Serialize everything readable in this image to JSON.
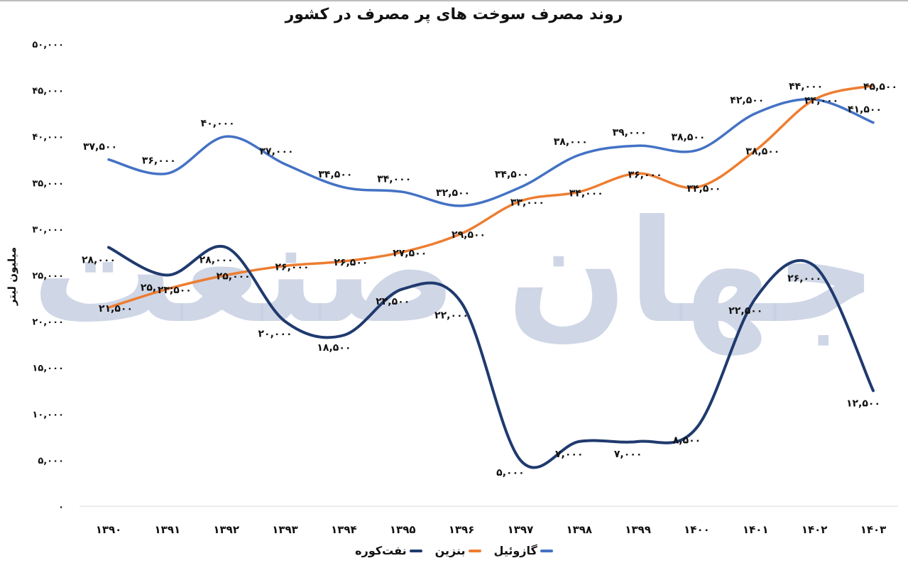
{
  "header": {
    "title": "روند مصرف سوخت های پر مصرف در کشور"
  },
  "watermark": {
    "text": "جهان صنعت",
    "color": "#c7cfe2"
  },
  "chart_data": {
    "type": "line",
    "title": "روند مصرف سوخت های پر مصرف در کشور",
    "xlabel": "",
    "ylabel": "میلیون لیتر",
    "ylim": [
      0,
      50000
    ],
    "y_ticks": [
      0,
      5000,
      10000,
      15000,
      20000,
      25000,
      30000,
      35000,
      40000,
      45000,
      50000
    ],
    "y_tick_labels": [
      "۰",
      "۵,۰۰۰",
      "۱۰,۰۰۰",
      "۱۵,۰۰۰",
      "۲۰,۰۰۰",
      "۲۵,۰۰۰",
      "۳۰,۰۰۰",
      "۳۵,۰۰۰",
      "۴۰,۰۰۰",
      "۴۵,۰۰۰",
      "۵۰,۰۰۰"
    ],
    "grid": false,
    "smooth": true,
    "legend_position": "bottom",
    "categories": [
      "1390",
      "1391",
      "1392",
      "1393",
      "1394",
      "1395",
      "1396",
      "1397",
      "1398",
      "1399",
      "1400",
      "1401",
      "1402",
      "1403"
    ],
    "category_labels": [
      "۱۳۹۰",
      "۱۳۹۱",
      "۱۳۹۲",
      "۱۳۹۳",
      "۱۳۹۴",
      "۱۳۹۵",
      "۱۳۹۶",
      "۱۳۹۷",
      "۱۳۹۸",
      "۱۳۹۹",
      "۱۴۰۰",
      "۱۴۰۱",
      "۱۴۰۲",
      "۱۴۰۳"
    ],
    "series": [
      {
        "name": "گازوئیل",
        "color": "#4472c4",
        "values": [
          37500,
          36000,
          40000,
          37000,
          34500,
          34000,
          32500,
          34500,
          38000,
          39000,
          38500,
          42500,
          44000,
          41500
        ],
        "labels": [
          "۳۷,۵۰۰",
          "۳۶,۰۰۰",
          "۴۰,۰۰۰",
          "۳۷,۰۰۰",
          "۳۴,۵۰۰",
          "۳۴,۰۰۰",
          "۳۲,۵۰۰",
          "۳۴,۵۰۰",
          "۳۸,۰۰۰",
          "۳۹,۰۰۰",
          "۳۸,۵۰۰",
          "۴۲,۵۰۰",
          "۴۴,۰۰۰",
          "۴۱,۵۰۰"
        ]
      },
      {
        "name": "بنزین",
        "color": "#ed7d31",
        "values": [
          21500,
          23500,
          25000,
          26000,
          26500,
          27500,
          29500,
          33000,
          34000,
          36000,
          34500,
          38500,
          44000,
          45500
        ],
        "labels": [
          "۲۱,۵۰۰",
          "۲۳,۵۰۰",
          "۲۵,۰۰۰",
          "۲۶,۰۰۰",
          "۲۶,۵۰۰",
          "۲۷,۵۰۰",
          "۲۹,۵۰۰",
          "۳۳,۰۰۰",
          "۳۴,۰۰۰",
          "۳۶,۰۰۰",
          "۳۴,۵۰۰",
          "۳۸,۵۰۰",
          "۴۴,۰۰۰",
          "۴۵,۵۰۰"
        ]
      },
      {
        "name": "نفت‌کوره",
        "color": "#1f3a6e",
        "values": [
          28000,
          25000,
          28000,
          20000,
          18500,
          23500,
          22000,
          5000,
          7000,
          7000,
          8500,
          22500,
          26000,
          12500
        ],
        "labels": [
          "۲۸,۰۰۰",
          "۲۵,۰۰۰",
          "۲۸,۰۰۰",
          "۲۰,۰۰۰",
          "۱۸,۵۰۰",
          "۲۳,۵۰۰",
          "۲۲,۰۰۰",
          "۵,۰۰۰",
          "۷,۰۰۰",
          "۷,۰۰۰",
          "۸,۵۰۰",
          "۲۲,۵۰۰",
          "۲۶,۰۰۰",
          "۱۲,۵۰۰"
        ]
      }
    ]
  }
}
